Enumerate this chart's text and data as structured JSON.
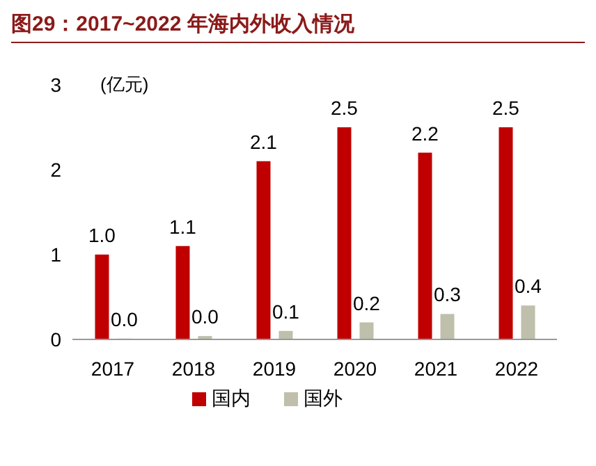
{
  "chart_data": {
    "type": "bar",
    "title": "图29：2017~2022 年海内外收入情况",
    "ylabel": "(亿元)",
    "categories": [
      "2017",
      "2018",
      "2019",
      "2020",
      "2021",
      "2022"
    ],
    "series": [
      {
        "name": "国内",
        "color": "#c00000",
        "values": [
          1.0,
          1.1,
          2.1,
          2.5,
          2.2,
          2.5
        ],
        "value_labels": [
          "1.0",
          "1.1",
          "2.1",
          "2.5",
          "2.2",
          "2.5"
        ]
      },
      {
        "name": "国外",
        "color": "#bfbfab",
        "values": [
          0.01,
          0.04,
          0.1,
          0.2,
          0.3,
          0.4
        ],
        "value_labels": [
          "0.0",
          "0.0",
          "0.1",
          "0.2",
          "0.3",
          "0.4"
        ]
      }
    ],
    "ylim": [
      0,
      3
    ],
    "yticks": [
      0,
      1,
      2,
      3
    ],
    "grid": false,
    "legend": "bottom"
  }
}
